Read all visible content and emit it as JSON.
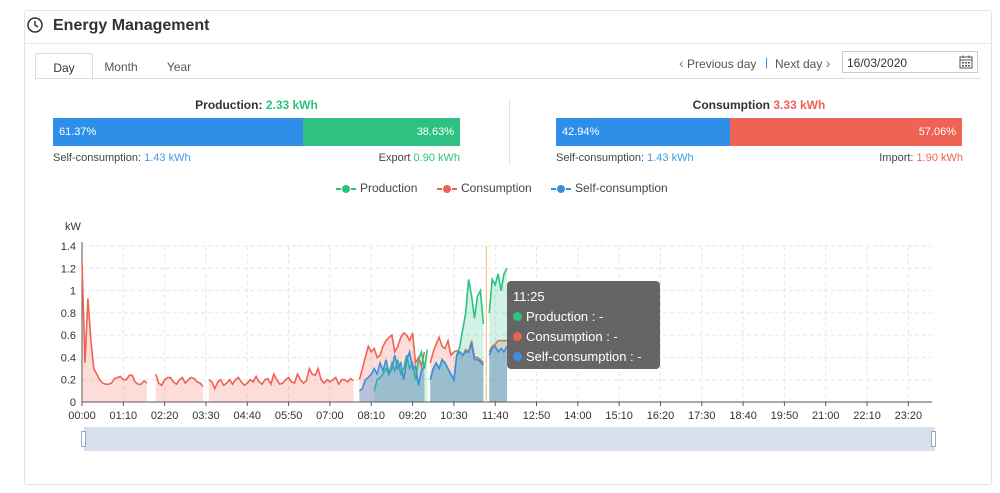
{
  "header": {
    "title": "Energy Management",
    "clock_icon": "clock-icon"
  },
  "tabs": [
    {
      "label": "Day",
      "active": true
    },
    {
      "label": "Month",
      "active": false
    },
    {
      "label": "Year",
      "active": false
    }
  ],
  "nav": {
    "previous": "Previous day",
    "next": "Next day",
    "separator": "|",
    "date": "16/03/2020"
  },
  "production": {
    "title_prefix": "Production: ",
    "title_value": "2.33 kWh",
    "self_pct": "61.37%",
    "export_pct": "38.63%",
    "self_label": "Self-consumption: ",
    "self_value": "1.43 kWh",
    "export_label": "Export ",
    "export_value": "0.90 kWh",
    "self_fraction": 0.6137
  },
  "consumption": {
    "title_prefix": "Consumption ",
    "title_value": "3.33 kWh",
    "self_pct": "42.94%",
    "import_pct": "57.06%",
    "self_label": "Self-consumption: ",
    "self_value": "1.43 kWh",
    "import_label": "Import: ",
    "import_value": "1.90 kWh",
    "self_fraction": 0.4294
  },
  "colors": {
    "production": "#2dc282",
    "consumption": "#f06254",
    "self": "#3d8fdd",
    "self_bar": "#2f8fe8"
  },
  "legend": [
    "Production",
    "Consumption",
    "Self-consumption"
  ],
  "tooltip": {
    "time": "11:25",
    "production": "Production : -",
    "consumption": "Consumption : -",
    "self": "Self-consumption : -"
  },
  "chart_data": {
    "type": "area",
    "ylabel": "kW",
    "ylim": [
      0,
      1.4
    ],
    "yticks": [
      "0",
      "0.2",
      "0.4",
      "0.6",
      "0.8",
      "1",
      "1.2",
      "1.4"
    ],
    "xticks": [
      "00:00",
      "01:10",
      "02:20",
      "03:30",
      "04:40",
      "05:50",
      "07:00",
      "08:10",
      "09:20",
      "10:30",
      "11:40",
      "12:50",
      "14:00",
      "15:10",
      "16:20",
      "17:30",
      "18:40",
      "19:50",
      "21:00",
      "22:10",
      "23:20"
    ],
    "x_interval_minutes": 5,
    "grid": true,
    "legend_position": "top-center",
    "cursor_time": "11:25",
    "series": [
      {
        "name": "Consumption",
        "segments": [
          {
            "start": "00:00",
            "values": [
              1.25,
              0.35,
              0.93,
              0.55,
              0.3,
              0.25,
              0.2,
              0.17,
              0.16,
              0.16,
              0.17,
              0.21,
              0.22,
              0.23,
              0.2,
              0.2,
              0.24,
              0.24,
              0.18,
              0.16,
              0.16,
              0.19,
              0.17
            ]
          },
          {
            "start": "02:05",
            "values": [
              0.25,
              0.17,
              0.15,
              0.2,
              0.22,
              0.22,
              0.18,
              0.16,
              0.2,
              0.22,
              0.17,
              0.2,
              0.22,
              0.21,
              0.18,
              0.17,
              0.14
            ]
          },
          {
            "start": "03:35",
            "values": [
              0.2,
              0.18,
              0.12,
              0.18,
              0.2,
              0.15,
              0.17,
              0.2,
              0.16,
              0.2,
              0.22,
              0.18,
              0.15,
              0.17,
              0.2,
              0.18,
              0.23,
              0.18,
              0.16,
              0.2,
              0.21,
              0.16,
              0.25,
              0.2,
              0.16,
              0.17,
              0.2,
              0.22,
              0.18,
              0.17,
              0.25,
              0.2,
              0.17,
              0.19,
              0.3,
              0.25,
              0.24,
              0.3,
              0.2,
              0.17,
              0.2,
              0.18,
              0.2,
              0.22,
              0.16,
              0.2,
              0.2,
              0.18,
              0.21,
              0.19
            ]
          },
          {
            "start": "07:50",
            "values": [
              0.2,
              0.3,
              0.4,
              0.5,
              0.45,
              0.48,
              0.4,
              0.42,
              0.5,
              0.55,
              0.58,
              0.6,
              0.45,
              0.5,
              0.58,
              0.62,
              0.6,
              0.55,
              0.62,
              0.35,
              0.4,
              0.32,
              0.45
            ]
          },
          {
            "start": "09:50",
            "values": [
              0.35,
              0.45,
              0.52,
              0.58,
              0.5,
              0.48,
              0.55,
              0.42,
              0.45,
              0.46,
              0.45,
              0.42,
              0.47,
              0.45,
              0.55,
              0.4,
              0.4,
              0.38,
              0.35
            ]
          },
          {
            "start": "11:30",
            "values": [
              0.45,
              0.5,
              0.52,
              0.55,
              0.55,
              0.55,
              0.55
            ]
          }
        ]
      },
      {
        "name": "Production",
        "segments": [
          {
            "start": "08:15",
            "values": [
              0.1,
              0.2,
              0.22,
              0.25,
              0.3,
              0.25,
              0.35,
              0.28,
              0.38,
              0.25,
              0.3,
              0.42,
              0.3,
              0.35,
              0.2,
              0.38,
              0.45,
              0.3,
              0.47
            ]
          },
          {
            "start": "09:50",
            "values": [
              0.2,
              0.3,
              0.35,
              0.3,
              0.38,
              0.35,
              0.3,
              0.25,
              0.2,
              0.42,
              0.5,
              0.65,
              0.8,
              1.1,
              0.95,
              0.75,
              0.95,
              1.0,
              0.7
            ]
          },
          {
            "start": "11:30",
            "values": [
              0.8,
              1.1,
              1.05,
              1.15,
              1.0,
              1.15,
              1.2
            ]
          }
        ]
      },
      {
        "name": "Self-consumption",
        "segments": [
          {
            "start": "07:50",
            "values": [
              0.1,
              0.12,
              0.2,
              0.22,
              0.25,
              0.3,
              0.25,
              0.35,
              0.28,
              0.38,
              0.25,
              0.3,
              0.42,
              0.3,
              0.35,
              0.2,
              0.38,
              0.45,
              0.3,
              0.32,
              0.15,
              0.28,
              0.32
            ]
          },
          {
            "start": "09:50",
            "values": [
              0.2,
              0.3,
              0.35,
              0.3,
              0.38,
              0.35,
              0.3,
              0.25,
              0.2,
              0.42,
              0.45,
              0.42,
              0.45,
              0.45,
              0.52,
              0.38,
              0.38,
              0.36,
              0.33
            ]
          },
          {
            "start": "11:30",
            "values": [
              0.42,
              0.48,
              0.5,
              0.45,
              0.48,
              0.45,
              0.5
            ]
          }
        ]
      }
    ]
  }
}
